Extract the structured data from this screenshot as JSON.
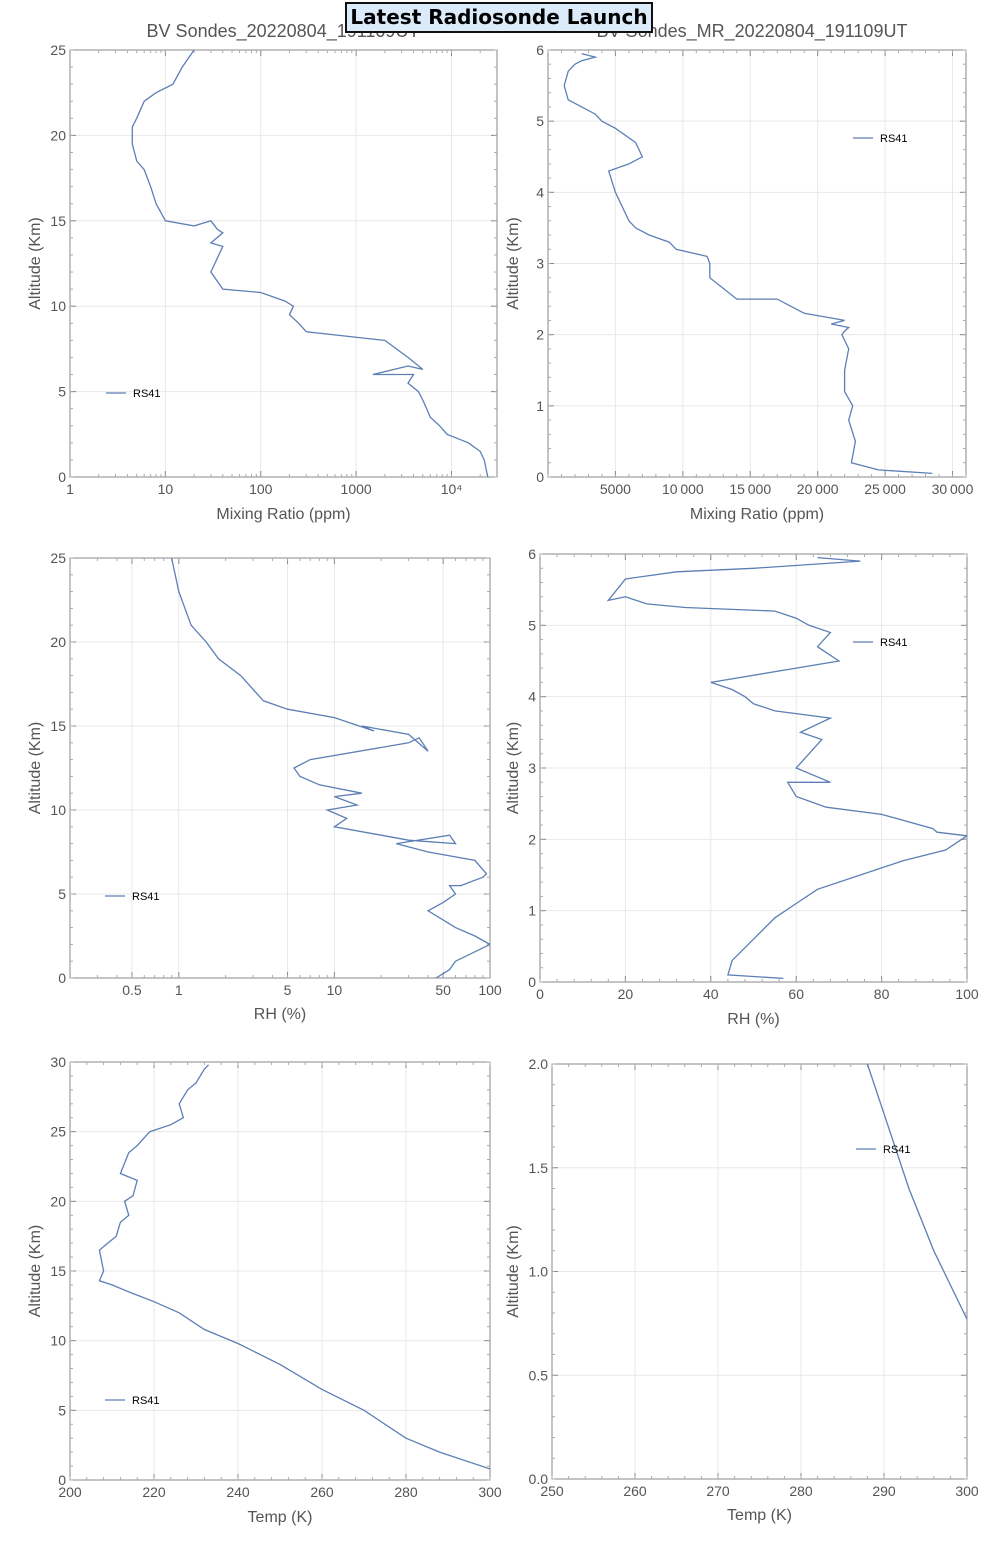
{
  "badge": "Latest Radiosonde Launch",
  "series_color": "#5c7fb5",
  "chart_data": [
    {
      "id": "mr_full",
      "type": "line",
      "title": "BV Sondes_20220804_191109UT",
      "title_visible": "BV Sondes_20220804_1",
      "xlabel": "Mixing Ratio (ppm)",
      "ylabel": "Altitude (Km)",
      "xscale": "log",
      "xlim": [
        1,
        30000
      ],
      "ylim": [
        0,
        25
      ],
      "xticks": [
        1,
        10,
        100,
        1000,
        10000
      ],
      "xtick_labels": [
        "1",
        "10",
        "100",
        "1000",
        "10⁴"
      ],
      "yticks": [
        0,
        5,
        10,
        15,
        20,
        25
      ],
      "ytick_labels": [
        "0",
        "5",
        "10",
        "15",
        "20",
        "25"
      ],
      "legend": "left",
      "grid": true,
      "series": [
        {
          "name": "RS41",
          "x": [
            24000,
            23000,
            22000,
            20000,
            15000,
            9000,
            7500,
            6000,
            5500,
            5000,
            4500,
            3500,
            4000,
            1500,
            3500,
            5000,
            3500,
            2000,
            300,
            250,
            200,
            220,
            180,
            100,
            40,
            30,
            40,
            30,
            40,
            35,
            30,
            20,
            10,
            8,
            7,
            6,
            5,
            4.5,
            4.5,
            5,
            6,
            8,
            12,
            15,
            20
          ],
          "y": [
            0,
            0.5,
            1,
            1.5,
            2,
            2.5,
            3,
            3.5,
            4,
            4.5,
            5,
            5.5,
            6,
            6,
            6.5,
            6.3,
            7,
            8,
            8.5,
            9,
            9.5,
            10,
            10.3,
            10.8,
            11,
            12,
            13.5,
            13.7,
            14.3,
            14.5,
            15,
            14.7,
            15,
            16,
            17,
            18,
            18.5,
            19.5,
            20.5,
            21,
            22,
            22.5,
            23,
            24,
            25
          ]
        }
      ]
    },
    {
      "id": "mr_low",
      "type": "line",
      "title": "BV Sondes_MR_20220804_191109UT",
      "title_visible": "BV Sondes_MR_20220804_191109UT",
      "xlabel": "Mixing Ratio (ppm)",
      "ylabel": "Altitude (Km)",
      "xscale": "linear",
      "xlim": [
        0,
        31000
      ],
      "ylim": [
        0,
        6
      ],
      "xticks": [
        5000,
        10000,
        15000,
        20000,
        25000,
        30000
      ],
      "xtick_labels": [
        "5000",
        "10 000",
        "15 000",
        "20 000",
        "25 000",
        "30 000"
      ],
      "yticks": [
        0,
        1,
        2,
        3,
        4,
        5,
        6
      ],
      "ytick_labels": [
        "0",
        "1",
        "2",
        "3",
        "4",
        "5",
        "6"
      ],
      "legend": "top-right",
      "grid": true,
      "series": [
        {
          "name": "RS41",
          "x": [
            28500,
            24500,
            22500,
            22800,
            22300,
            22600,
            22000,
            22000,
            22300,
            21800,
            22000,
            22300,
            21000,
            22000,
            19000,
            18000,
            17000,
            14000,
            12000,
            12000,
            11800,
            9500,
            9000,
            7500,
            6500,
            6000,
            5500,
            5000,
            4500,
            6000,
            7000,
            6500,
            5000,
            4000,
            3500,
            2500,
            1500,
            1200,
            1500,
            2000,
            2500,
            3500,
            2500
          ],
          "y": [
            0.05,
            0.1,
            0.2,
            0.5,
            0.8,
            1,
            1.2,
            1.5,
            1.8,
            2,
            2.05,
            2.1,
            2.15,
            2.2,
            2.3,
            2.4,
            2.5,
            2.5,
            2.8,
            3,
            3.1,
            3.2,
            3.3,
            3.4,
            3.5,
            3.6,
            3.8,
            4,
            4.3,
            4.4,
            4.5,
            4.7,
            4.9,
            5,
            5.1,
            5.2,
            5.3,
            5.5,
            5.7,
            5.8,
            5.85,
            5.9,
            5.95
          ]
        }
      ]
    },
    {
      "id": "rh_full",
      "type": "line",
      "title": "",
      "xlabel": "RH (%)",
      "ylabel": "Altitude (Km)",
      "xscale": "log",
      "xlim": [
        0.2,
        100
      ],
      "ylim": [
        0,
        25
      ],
      "xticks": [
        0.5,
        1,
        5,
        10,
        50,
        100
      ],
      "xtick_labels": [
        "0.5",
        "1",
        "5",
        "10",
        "50",
        "100"
      ],
      "yticks": [
        0,
        5,
        10,
        15,
        20,
        25
      ],
      "ytick_labels": [
        "0",
        "5",
        "10",
        "15",
        "20",
        "25"
      ],
      "legend": "left",
      "grid": true,
      "series": [
        {
          "name": "RS41",
          "x": [
            45,
            55,
            60,
            100,
            80,
            60,
            40,
            50,
            60,
            55,
            65,
            90,
            95,
            80,
            40,
            25,
            55,
            60,
            30,
            20,
            10,
            12,
            9,
            14,
            10,
            15,
            8,
            6,
            5.5,
            7,
            30,
            35,
            40,
            30,
            15,
            18,
            10,
            5,
            3.5,
            2.5,
            1.8,
            1.5,
            1.2,
            1,
            0.9
          ],
          "y": [
            0,
            0.5,
            1,
            2,
            2.5,
            3,
            4,
            4.5,
            5,
            5.5,
            5.5,
            6,
            6.2,
            7,
            7.5,
            8,
            8.5,
            8,
            8.2,
            8.5,
            9,
            9.5,
            10,
            10.3,
            10.8,
            11,
            11.5,
            12,
            12.5,
            13,
            14,
            14.3,
            13.5,
            14.5,
            15,
            14.7,
            15.5,
            16,
            16.5,
            18,
            19,
            20,
            21,
            23,
            25
          ]
        }
      ]
    },
    {
      "id": "rh_low",
      "type": "line",
      "title": "",
      "xlabel": "RH (%)",
      "ylabel": "Altitude (Km)",
      "xscale": "linear",
      "xlim": [
        0,
        100
      ],
      "ylim": [
        0,
        6
      ],
      "xticks": [
        0,
        20,
        40,
        60,
        80,
        100
      ],
      "xtick_labels": [
        "0",
        "20",
        "40",
        "60",
        "80",
        "100"
      ],
      "yticks": [
        0,
        1,
        2,
        3,
        4,
        5,
        6
      ],
      "ytick_labels": [
        "0",
        "1",
        "2",
        "3",
        "4",
        "5",
        "6"
      ],
      "legend": "top-right",
      "grid": true,
      "series": [
        {
          "name": "RS41",
          "x": [
            57,
            44,
            45,
            50,
            55,
            60,
            65,
            75,
            85,
            95,
            100,
            93,
            92,
            83,
            80,
            67,
            60,
            58,
            68,
            60,
            66,
            61,
            68,
            55,
            50,
            48,
            45,
            40,
            60,
            70,
            65,
            68,
            63,
            60,
            55,
            34,
            25,
            20,
            16,
            18,
            20,
            32,
            50,
            75,
            65
          ],
          "y": [
            0.05,
            0.1,
            0.3,
            0.6,
            0.9,
            1.1,
            1.3,
            1.5,
            1.7,
            1.85,
            2.05,
            2.1,
            2.15,
            2.3,
            2.35,
            2.45,
            2.6,
            2.8,
            2.8,
            3,
            3.4,
            3.5,
            3.7,
            3.8,
            3.9,
            4,
            4.1,
            4.2,
            4.4,
            4.5,
            4.7,
            4.9,
            5,
            5.1,
            5.2,
            5.25,
            5.3,
            5.4,
            5.35,
            5.5,
            5.65,
            5.75,
            5.8,
            5.9,
            5.95
          ]
        }
      ]
    },
    {
      "id": "temp_full",
      "type": "line",
      "title": "",
      "xlabel": "Temp (K)",
      "ylabel": "Altitude (Km)",
      "xscale": "linear",
      "xlim": [
        200,
        300
      ],
      "ylim": [
        0,
        30
      ],
      "xticks": [
        200,
        220,
        240,
        260,
        280,
        300
      ],
      "xtick_labels": [
        "200",
        "220",
        "240",
        "260",
        "280",
        "300"
      ],
      "yticks": [
        0,
        5,
        10,
        15,
        20,
        25,
        30
      ],
      "ytick_labels": [
        "0",
        "5",
        "10",
        "15",
        "20",
        "25",
        "30"
      ],
      "legend": "left",
      "grid": true,
      "series": [
        {
          "name": "RS41",
          "x": [
            300,
            288,
            280,
            270,
            260,
            250,
            240,
            232,
            226,
            220,
            214,
            210,
            207,
            208,
            207,
            209,
            211,
            212,
            214,
            213,
            215,
            216,
            212,
            214,
            216,
            219,
            224,
            227,
            226,
            228,
            230,
            232,
            233
          ],
          "y": [
            0.8,
            2,
            3,
            5,
            6.5,
            8.3,
            9.8,
            10.8,
            12,
            12.8,
            13.5,
            14,
            14.3,
            15,
            16.5,
            17,
            17.5,
            18.5,
            19,
            20,
            20.4,
            21.5,
            22,
            23.5,
            24,
            25,
            25.5,
            26,
            27,
            28,
            28.5,
            29.5,
            29.8
          ]
        }
      ]
    },
    {
      "id": "temp_low",
      "type": "line",
      "title": "",
      "xlabel": "Temp (K)",
      "ylabel": "Altitude (Km)",
      "xscale": "linear",
      "xlim": [
        250,
        300
      ],
      "ylim": [
        0,
        2
      ],
      "xticks": [
        250,
        260,
        270,
        280,
        290,
        300
      ],
      "xtick_labels": [
        "250",
        "260",
        "270",
        "280",
        "290",
        "300"
      ],
      "yticks": [
        0,
        0.5,
        1,
        1.5,
        2
      ],
      "ytick_labels": [
        "0.0",
        "0.5",
        "1.0",
        "1.5",
        "2.0"
      ],
      "legend": "top-right",
      "grid": true,
      "series": [
        {
          "name": "RS41",
          "x": [
            300,
            296,
            293,
            290.5,
            288
          ],
          "y": [
            0.77,
            1.1,
            1.4,
            1.7,
            2.0
          ]
        }
      ]
    }
  ]
}
